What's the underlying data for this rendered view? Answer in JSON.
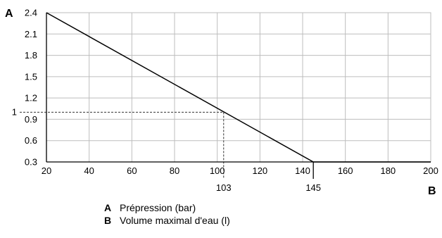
{
  "chart_data": {
    "type": "line",
    "x": [
      20,
      145,
      200
    ],
    "y": [
      2.4,
      0.3,
      0.3
    ],
    "xlim": [
      20,
      200
    ],
    "ylim": [
      0.3,
      2.4
    ],
    "x_ticks": [
      "20",
      "40",
      "60",
      "80",
      "100",
      "120",
      "140",
      "160",
      "180",
      "200"
    ],
    "y_ticks": [
      "0.3",
      "0.6",
      "0.9",
      "1.2",
      "1.5",
      "1.8",
      "2.1",
      "2.4"
    ],
    "grid": true,
    "xlabel": "B",
    "ylabel": "A",
    "annotations": [
      {
        "x": 103,
        "y": 1,
        "x_label": "103",
        "y_label": "1",
        "style": "dashed"
      },
      {
        "x": 145,
        "x_label": "145"
      }
    ]
  },
  "legend": [
    {
      "key": "A",
      "text": "Prépression (bar)"
    },
    {
      "key": "B",
      "text": "Volume maximal d'eau (l)"
    }
  ]
}
